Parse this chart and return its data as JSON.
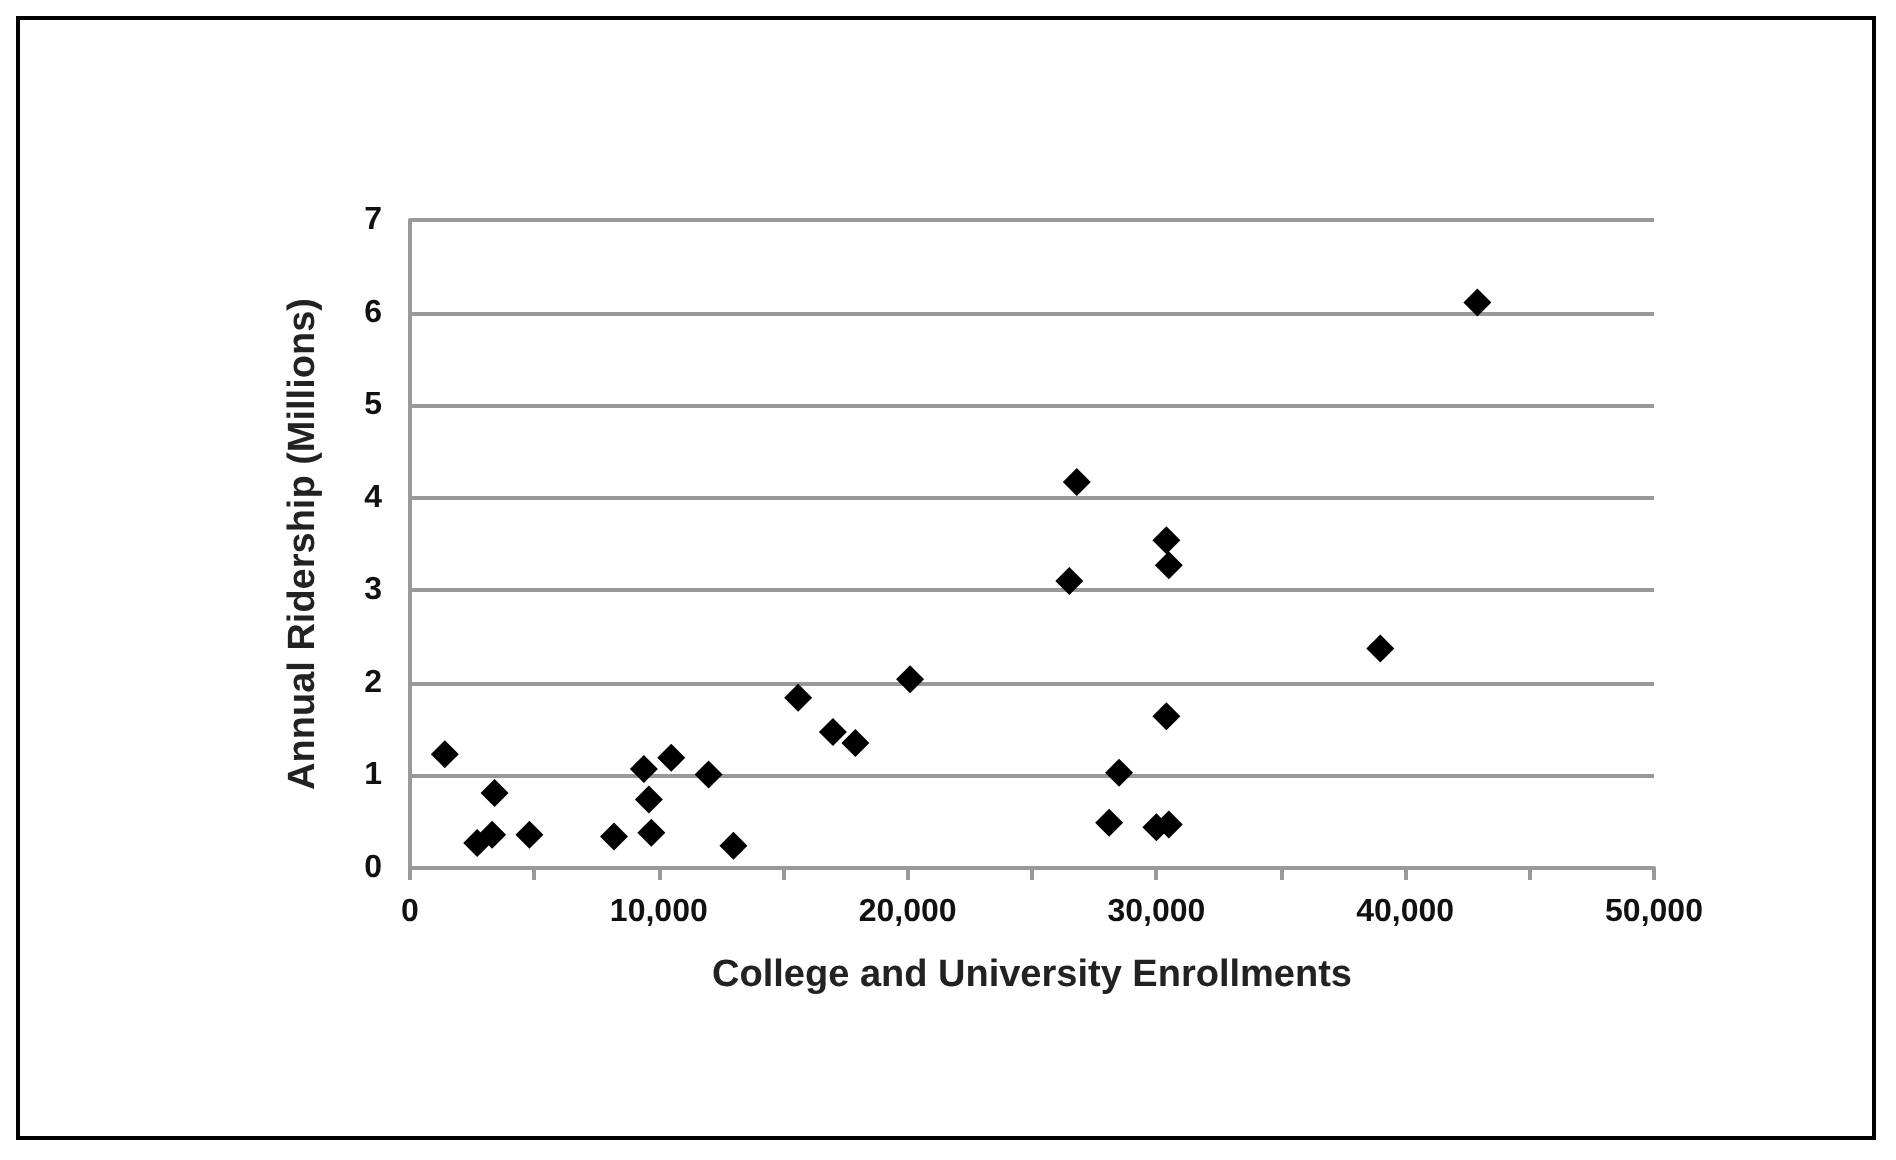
{
  "chart_data": {
    "type": "scatter",
    "xlabel": "College and University Enrollments",
    "ylabel": "Annual Ridership (Millions)",
    "x": [
      1400,
      3400,
      2700,
      3300,
      4800,
      8200,
      9400,
      9600,
      9700,
      10500,
      12000,
      13000,
      15600,
      17000,
      17900,
      20100,
      42900,
      26800,
      30400,
      30500,
      26500,
      39000,
      30400,
      28500,
      28100,
      30000,
      30500
    ],
    "series": [
      {
        "color": "#000000",
        "values": [
          1.23,
          0.81,
          0.27,
          0.36,
          0.36,
          0.34,
          1.07,
          0.74,
          0.38,
          1.19,
          1.01,
          0.24,
          1.84,
          1.47,
          1.35,
          2.04,
          6.11,
          4.17,
          3.54,
          3.27,
          3.1,
          2.37,
          1.64,
          1.03,
          0.49,
          0.44,
          0.47
        ]
      }
    ],
    "xlim": [
      0,
      50000
    ],
    "xticks": [
      0,
      {
        "value": 5000,
        "label": null
      },
      {
        "value": 10000,
        "label": "10,000"
      },
      {
        "value": 15000,
        "label": null
      },
      {
        "value": 20000,
        "label": "20,000"
      },
      {
        "value": 25000,
        "label": null
      },
      {
        "value": 30000,
        "label": "30,000"
      },
      {
        "value": 35000,
        "label": null
      },
      {
        "value": 40000,
        "label": "40,000"
      },
      {
        "value": 45000,
        "label": null
      },
      {
        "value": 50000,
        "label": "50,000"
      }
    ],
    "ylim": [
      0,
      7
    ],
    "yticks": [
      0,
      1,
      2,
      3,
      4,
      5,
      6,
      7
    ],
    "grid": "y",
    "marker": "diamond",
    "legend": false
  }
}
